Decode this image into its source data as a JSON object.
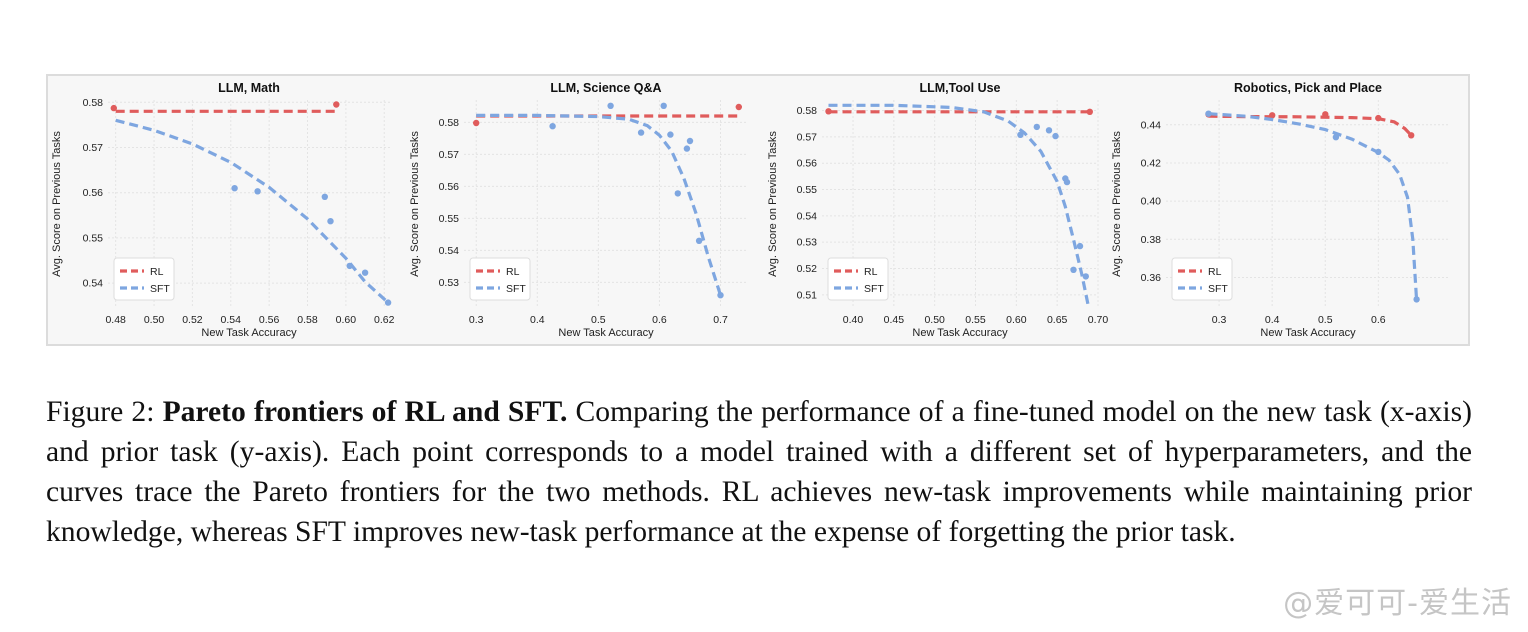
{
  "chart_data": [
    {
      "type": "scatter",
      "title": "LLM, Math",
      "xlabel": "New Task Accuracy",
      "ylabel": "Avg. Score on Previous Tasks",
      "xlim": [
        0.476,
        0.623
      ],
      "ylim": [
        0.5345,
        0.5805
      ],
      "xticks": [
        "0.48",
        "0.50",
        "0.52",
        "0.54",
        "0.56",
        "0.58",
        "0.60",
        "0.62"
      ],
      "yticks": [
        "0.54",
        "0.55",
        "0.56",
        "0.57",
        "0.58"
      ],
      "legend_position": "bottom-left",
      "series": [
        {
          "name": "RL",
          "color": "#e05c5c",
          "points": [
            [
              0.479,
              0.5787
            ],
            [
              0.595,
              0.5795
            ]
          ],
          "frontier": [
            [
              0.48,
              0.578
            ],
            [
              0.595,
              0.578
            ]
          ]
        },
        {
          "name": "SFT",
          "color": "#7ea6e0",
          "points": [
            [
              0.542,
              0.561
            ],
            [
              0.554,
              0.5603
            ],
            [
              0.589,
              0.5591
            ],
            [
              0.592,
              0.5537
            ],
            [
              0.602,
              0.5438
            ],
            [
              0.61,
              0.5423
            ],
            [
              0.622,
              0.5357
            ]
          ],
          "frontier": [
            [
              0.48,
              0.576
            ],
            [
              0.5,
              0.5738
            ],
            [
              0.52,
              0.5708
            ],
            [
              0.54,
              0.5667
            ],
            [
              0.56,
              0.5612
            ],
            [
              0.58,
              0.5542
            ],
            [
              0.6,
              0.5455
            ],
            [
              0.61,
              0.5403
            ],
            [
              0.622,
              0.5357
            ]
          ]
        }
      ]
    },
    {
      "type": "scatter",
      "title": "LLM, Science Q&A",
      "xlabel": "New Task Accuracy",
      "ylabel": "Avg. Score on Previous Tasks",
      "xlim": [
        0.28,
        0.745
      ],
      "ylim": [
        0.522,
        0.587
      ],
      "xticks": [
        "0.3",
        "0.4",
        "0.5",
        "0.6",
        "0.7"
      ],
      "yticks": [
        "0.53",
        "0.54",
        "0.55",
        "0.56",
        "0.57",
        "0.58"
      ],
      "legend_position": "bottom-left",
      "series": [
        {
          "name": "RL",
          "color": "#e05c5c",
          "points": [
            [
              0.3,
              0.5798
            ],
            [
              0.73,
              0.5848
            ]
          ],
          "frontier": [
            [
              0.3,
              0.582
            ],
            [
              0.73,
              0.582
            ]
          ]
        },
        {
          "name": "SFT",
          "color": "#7ea6e0",
          "points": [
            [
              0.425,
              0.5788
            ],
            [
              0.52,
              0.5852
            ],
            [
              0.57,
              0.5768
            ],
            [
              0.607,
              0.5852
            ],
            [
              0.618,
              0.5762
            ],
            [
              0.63,
              0.5578
            ],
            [
              0.645,
              0.5718
            ],
            [
              0.65,
              0.5742
            ],
            [
              0.665,
              0.543
            ],
            [
              0.7,
              0.526
            ]
          ],
          "frontier": [
            [
              0.3,
              0.5822
            ],
            [
              0.4,
              0.5822
            ],
            [
              0.5,
              0.5818
            ],
            [
              0.55,
              0.581
            ],
            [
              0.58,
              0.579
            ],
            [
              0.6,
              0.576
            ],
            [
              0.62,
              0.571
            ],
            [
              0.64,
              0.5625
            ],
            [
              0.66,
              0.5515
            ],
            [
              0.68,
              0.538
            ],
            [
              0.69,
              0.532
            ],
            [
              0.7,
              0.526
            ]
          ]
        }
      ]
    },
    {
      "type": "scatter",
      "title": "LLM,Tool Use",
      "xlabel": "New Task Accuracy",
      "ylabel": "Avg. Score on Previous Tasks",
      "xlim": [
        0.362,
        0.7
      ],
      "ylim": [
        0.505,
        0.584
      ],
      "xticks": [
        "0.40",
        "0.45",
        "0.50",
        "0.55",
        "0.60",
        "0.65",
        "0.70"
      ],
      "yticks": [
        "0.51",
        "0.52",
        "0.53",
        "0.54",
        "0.55",
        "0.56",
        "0.57",
        "0.58"
      ],
      "legend_position": "bottom-left",
      "series": [
        {
          "name": "RL",
          "color": "#e05c5c",
          "points": [
            [
              0.37,
              0.5797
            ],
            [
              0.69,
              0.5795
            ]
          ],
          "frontier": [
            [
              0.37,
              0.5795
            ],
            [
              0.69,
              0.5795
            ]
          ]
        },
        {
          "name": "SFT",
          "color": "#7ea6e0",
          "points": [
            [
              0.605,
              0.5708
            ],
            [
              0.625,
              0.5738
            ],
            [
              0.64,
              0.5725
            ],
            [
              0.648,
              0.5703
            ],
            [
              0.66,
              0.5542
            ],
            [
              0.662,
              0.5528
            ],
            [
              0.67,
              0.5195
            ],
            [
              0.678,
              0.5285
            ],
            [
              0.685,
              0.517
            ]
          ],
          "frontier": [
            [
              0.37,
              0.582
            ],
            [
              0.45,
              0.582
            ],
            [
              0.52,
              0.5812
            ],
            [
              0.56,
              0.5795
            ],
            [
              0.59,
              0.576
            ],
            [
              0.61,
              0.5715
            ],
            [
              0.63,
              0.5645
            ],
            [
              0.65,
              0.553
            ],
            [
              0.66,
              0.5435
            ],
            [
              0.67,
              0.531
            ],
            [
              0.68,
              0.518
            ],
            [
              0.688,
              0.506
            ]
          ]
        }
      ]
    },
    {
      "type": "scatter",
      "title": "Robotics, Pick and Place",
      "xlabel": "New Task Accuracy",
      "ylabel": "Avg. Score on Previous Tasks",
      "xlim": [
        0.2,
        0.735
      ],
      "ylim": [
        0.344,
        0.453
      ],
      "xticks": [
        "0.3",
        "0.4",
        "0.5",
        "0.6"
      ],
      "yticks": [
        "0.36",
        "0.38",
        "0.40",
        "0.42",
        "0.44"
      ],
      "legend_position": "bottom-left",
      "series": [
        {
          "name": "RL",
          "color": "#e05c5c",
          "points": [
            [
              0.28,
              0.4455
            ],
            [
              0.4,
              0.445
            ],
            [
              0.5,
              0.4455
            ],
            [
              0.6,
              0.4435
            ],
            [
              0.662,
              0.4345
            ]
          ],
          "frontier": [
            [
              0.28,
              0.4445
            ],
            [
              0.35,
              0.4443
            ],
            [
              0.45,
              0.4442
            ],
            [
              0.55,
              0.4438
            ],
            [
              0.6,
              0.4432
            ],
            [
              0.63,
              0.4415
            ],
            [
              0.65,
              0.438
            ],
            [
              0.662,
              0.4345
            ]
          ]
        },
        {
          "name": "SFT",
          "color": "#7ea6e0",
          "points": [
            [
              0.28,
              0.4458
            ],
            [
              0.52,
              0.4335
            ],
            [
              0.6,
              0.4258
            ],
            [
              0.672,
              0.3485
            ]
          ],
          "frontier": [
            [
              0.28,
              0.4458
            ],
            [
              0.35,
              0.4445
            ],
            [
              0.4,
              0.4428
            ],
            [
              0.45,
              0.4405
            ],
            [
              0.5,
              0.4375
            ],
            [
              0.55,
              0.4325
            ],
            [
              0.6,
              0.4255
            ],
            [
              0.62,
              0.4215
            ],
            [
              0.64,
              0.414
            ],
            [
              0.655,
              0.402
            ],
            [
              0.665,
              0.38
            ],
            [
              0.672,
              0.348
            ]
          ]
        }
      ]
    }
  ],
  "caption": {
    "label": "Figure 2:",
    "title": "Pareto frontiers of RL and SFT.",
    "text": "Comparing the performance of a fine-tuned model on the new task (x-axis) and prior task (y-axis).  Each point corresponds to a model trained with a different set of hyperparameters, and the curves trace the Pareto frontiers for the two methods. RL achieves new-task improvements while maintaining prior knowledge, whereas SFT improves new-task performance at the expense of forgetting the prior task."
  },
  "watermark": "@爱可可-爱生活"
}
